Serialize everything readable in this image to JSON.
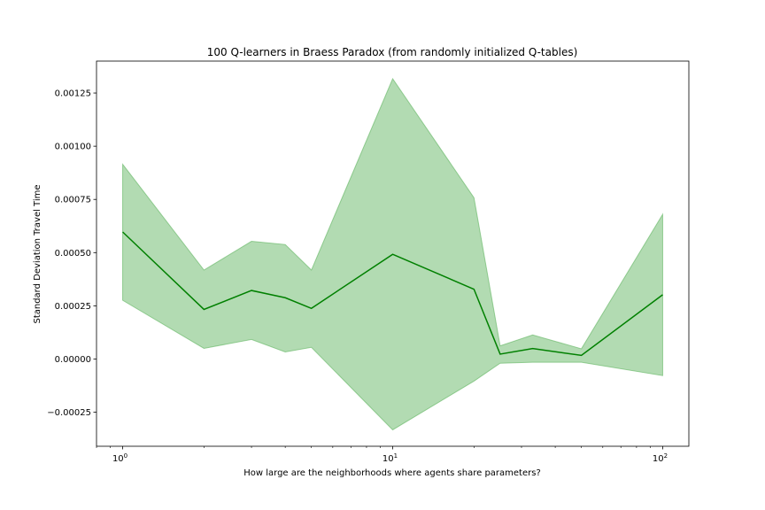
{
  "chart_data": {
    "type": "line",
    "title": "100 Q-learners in Braess Paradox (from randomly initialized Q-tables)",
    "xlabel": "How large are the neighborhoods where agents share parameters?",
    "ylabel": "Standard Deviation Travel Time",
    "x_scale": "log",
    "xlim": [
      0.8,
      125
    ],
    "ylim": [
      -0.00041,
      0.0014
    ],
    "x_ticks": [
      {
        "value": 1,
        "base": "10",
        "exp": "0"
      },
      {
        "value": 10,
        "base": "10",
        "exp": "1"
      },
      {
        "value": 100,
        "base": "10",
        "exp": "2"
      }
    ],
    "y_ticks": [
      {
        "value": -0.00025,
        "label": "−0.00025"
      },
      {
        "value": 0.0,
        "label": "0.00000"
      },
      {
        "value": 0.00025,
        "label": "0.00025"
      },
      {
        "value": 0.0005,
        "label": "0.00050"
      },
      {
        "value": 0.00075,
        "label": "0.00075"
      },
      {
        "value": 0.001,
        "label": "0.00100"
      },
      {
        "value": 0.00125,
        "label": "0.00125"
      }
    ],
    "grid": false,
    "series": [
      {
        "color": "#008000",
        "band_color": "#5fb45f",
        "x": [
          1,
          2,
          3,
          4,
          5,
          10,
          20,
          25,
          33,
          50,
          100
        ],
        "y": [
          0.000597,
          0.000233,
          0.000322,
          0.000288,
          0.000238,
          0.000492,
          0.000328,
          2.3e-05,
          4.9e-05,
          1.7e-05,
          0.000302
        ],
        "upper": [
          0.000915,
          0.000418,
          0.000553,
          0.000538,
          0.000418,
          0.001317,
          0.000758,
          6.2e-05,
          0.000113,
          4.8e-05,
          0.00068
        ],
        "lower": [
          0.000276,
          5e-05,
          9.2e-05,
          3.3e-05,
          5.5e-05,
          -0.000333,
          -0.000104,
          -2e-05,
          -1.5e-05,
          -1.5e-05,
          -7.8e-05
        ]
      }
    ]
  }
}
